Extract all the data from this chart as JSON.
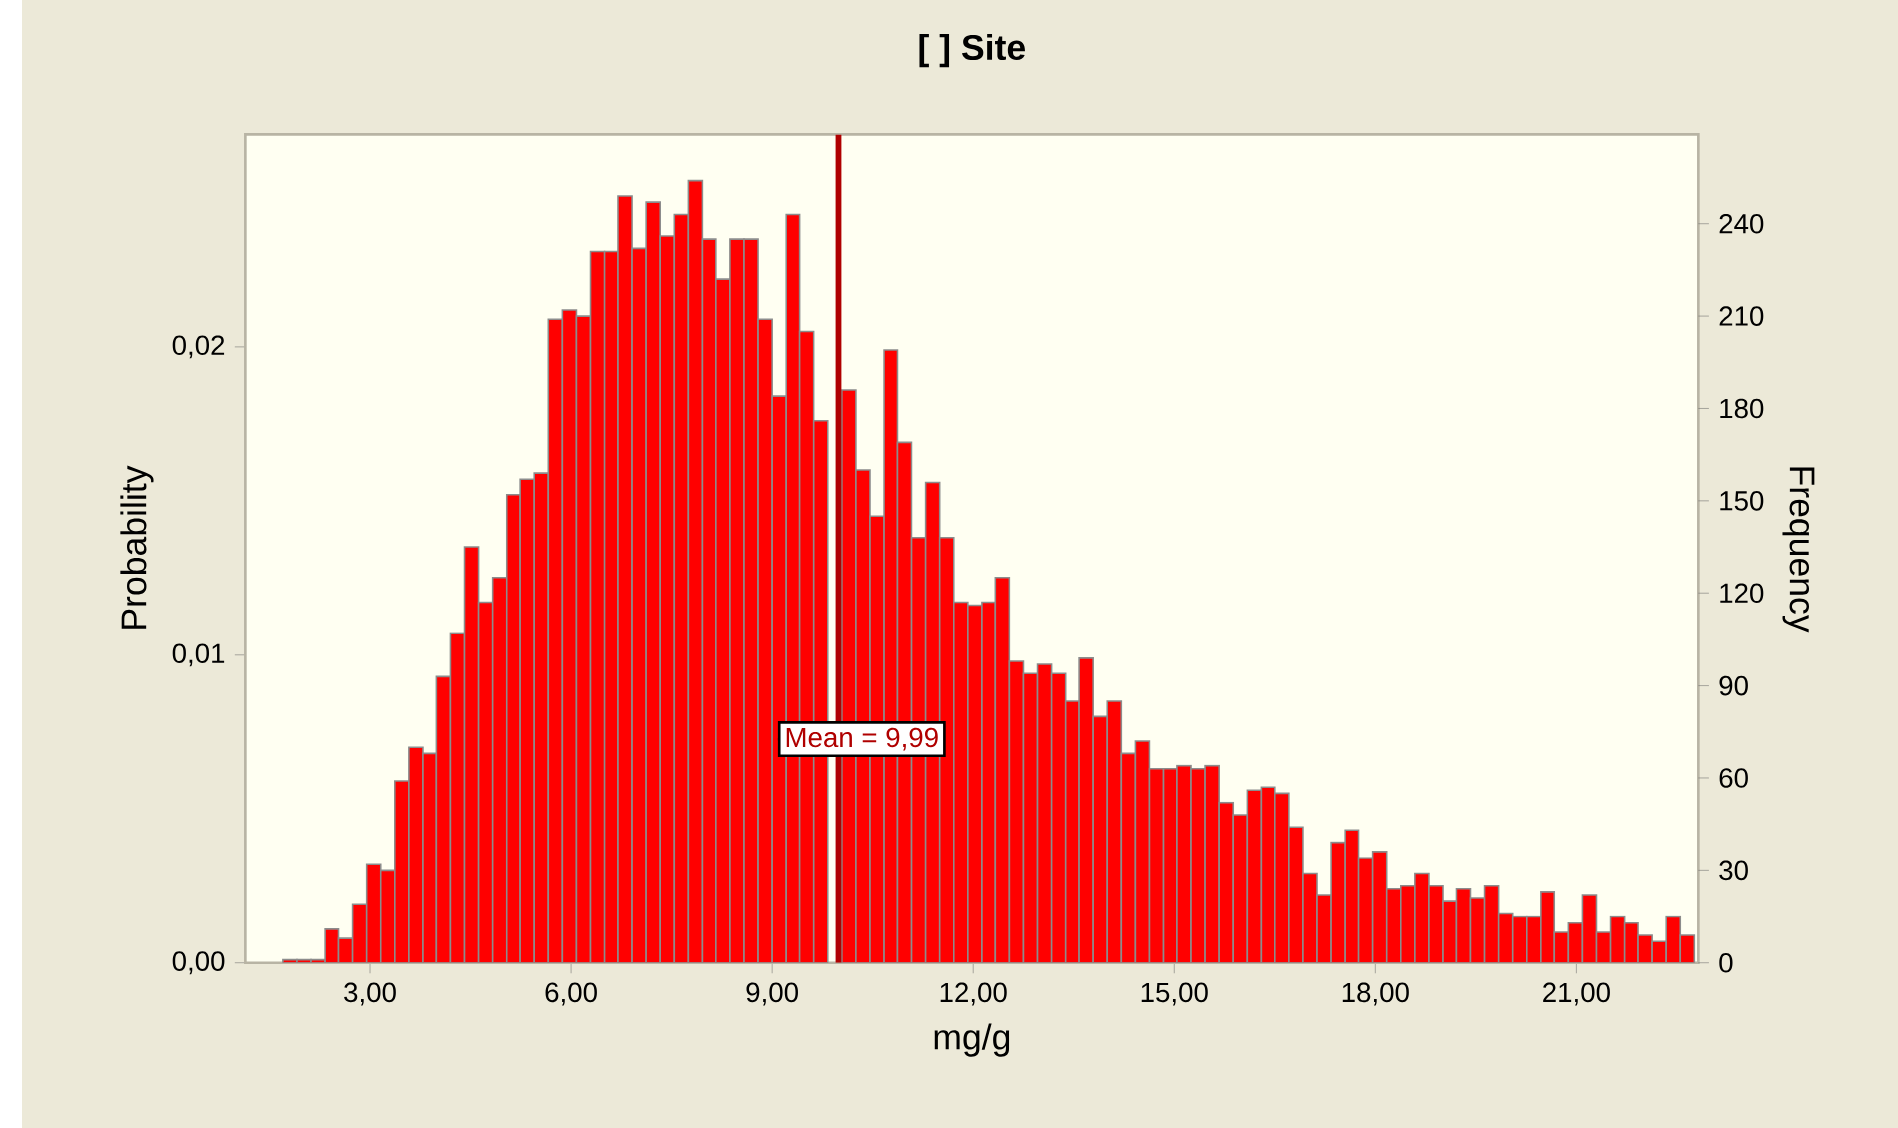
{
  "chart_data": {
    "type": "histogram",
    "title": "[ ] Site",
    "xlabel": "mg/g",
    "ylabel": "Probability",
    "y2label": "Frequency",
    "bins": [
      1.7,
      1.91,
      2.12,
      2.33,
      2.53,
      2.74,
      2.95,
      3.16,
      3.37,
      3.58,
      3.79,
      3.99,
      4.2,
      4.41,
      4.62,
      4.83,
      5.04,
      5.24,
      5.45,
      5.66,
      5.87,
      6.08,
      6.29,
      6.5,
      6.7,
      6.91,
      7.12,
      7.33,
      7.54,
      7.75,
      7.96,
      8.16,
      8.37,
      8.58,
      8.79,
      9.0,
      9.21,
      9.41,
      9.62,
      9.83,
      10.04,
      10.25,
      10.46,
      10.67,
      10.87,
      11.08,
      11.29,
      11.5,
      11.71,
      11.92,
      12.13,
      12.33,
      12.54,
      12.75,
      12.96,
      13.17,
      13.38,
      13.58,
      13.79,
      14.0,
      14.21,
      14.42,
      14.63,
      14.84,
      15.04,
      15.25,
      15.46,
      15.67,
      15.88,
      16.09,
      16.3,
      16.5,
      16.71,
      16.92,
      17.13,
      17.34,
      17.55,
      17.75,
      17.96,
      18.17,
      18.38,
      18.59,
      18.8,
      19.01,
      19.21,
      19.42,
      19.63,
      19.84,
      20.05,
      20.26,
      20.47,
      20.67,
      20.88,
      21.09,
      21.3,
      21.51,
      21.72,
      21.92,
      22.13,
      22.34,
      22.55,
      22.76
    ],
    "series": [
      {
        "color": "#ff0000",
        "axis": "y2",
        "values": [
          1,
          1,
          1,
          11,
          8,
          19,
          32,
          30,
          59,
          70,
          68,
          93,
          107,
          135,
          117,
          125,
          152,
          157,
          159,
          209,
          212,
          210,
          231,
          231,
          249,
          232,
          247,
          236,
          243,
          254,
          235,
          222,
          235,
          235,
          209,
          184,
          243,
          205,
          176,
          null,
          186,
          160,
          145,
          199,
          169,
          138,
          156,
          138,
          117,
          116,
          117,
          125,
          98,
          94,
          97,
          94,
          85,
          99,
          80,
          85,
          68,
          72,
          63,
          63,
          64,
          63,
          64,
          52,
          48,
          56,
          57,
          55,
          44,
          29,
          22,
          39,
          43,
          34,
          36,
          24,
          25,
          29,
          25,
          20,
          24,
          21,
          25,
          16,
          15,
          15,
          23,
          10,
          13,
          22,
          10,
          15,
          13,
          9,
          7,
          15,
          9
        ]
      }
    ],
    "xlim": [
      1.14,
      22.82
    ],
    "xticks": [
      {
        "value": 3,
        "label": "3,00"
      },
      {
        "value": 6,
        "label": "6,00"
      },
      {
        "value": 9,
        "label": "9,00"
      },
      {
        "value": 12,
        "label": "12,00"
      },
      {
        "value": 15,
        "label": "15,00"
      },
      {
        "value": 18,
        "label": "18,00"
      },
      {
        "value": 21,
        "label": "21,00"
      }
    ],
    "ylim": [
      0,
      0.0269
    ],
    "yticks": [
      {
        "value": 0,
        "label": "0,00"
      },
      {
        "value": 0.01,
        "label": "0,01"
      },
      {
        "value": 0.02,
        "label": "0,02"
      }
    ],
    "y2lim": [
      0,
      269
    ],
    "y2ticks": [
      0,
      30,
      60,
      90,
      120,
      150,
      180,
      210,
      240
    ],
    "ref_lines": [
      {
        "axis": "x",
        "value": 9.99,
        "label": "Mean = 9,99",
        "color": "#b00000"
      }
    ],
    "grid": false
  }
}
